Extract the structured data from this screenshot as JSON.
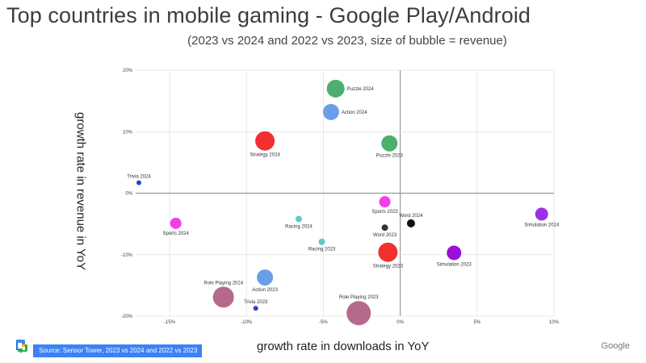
{
  "title": "Top countries in mobile gaming - Google Play/Android",
  "subtitle": "(2023 vs 2024 and 2022 vs 2023, size of bubble = revenue)",
  "source": "Source: Sensor Tower, 2023 vs 2024 and 2022 vs 2023",
  "brand": "Google",
  "logo_icon": "google-workspace-logo-icon",
  "chart_data": {
    "type": "scatter",
    "title": "Top countries in mobile gaming - Google Play/Android",
    "xlabel": "growth rate in downloads in YoY",
    "ylabel": "growth rate in revenue in YoY",
    "xlim": [
      -17,
      10
    ],
    "ylim": [
      -20,
      20
    ],
    "xticks": [
      -15,
      -10,
      -5,
      0,
      5,
      10
    ],
    "yticks": [
      -20,
      -10,
      0,
      10,
      20
    ],
    "tick_format": "percent",
    "grid": true,
    "points": [
      {
        "label": "Puzzle 2024",
        "x": -4.2,
        "y": 17.0,
        "size": 11,
        "color": "#4caf6e",
        "label_pos": "right"
      },
      {
        "label": "Action 2024",
        "x": -4.5,
        "y": 13.2,
        "size": 10,
        "color": "#6a9ee8",
        "label_pos": "right"
      },
      {
        "label": "Strategy 2024",
        "x": -8.8,
        "y": 8.5,
        "size": 12,
        "color": "#f23030",
        "label_pos": "below"
      },
      {
        "label": "Puzzle 2023",
        "x": -0.7,
        "y": 8.1,
        "size": 10,
        "color": "#4caf6e",
        "label_pos": "below"
      },
      {
        "label": "Trivia 2024",
        "x": -17.0,
        "y": 1.7,
        "size": 3,
        "color": "#2b3ed9",
        "label_pos": "above"
      },
      {
        "label": "Sports 2023",
        "x": -1.0,
        "y": -1.4,
        "size": 7,
        "color": "#f03ee8",
        "label_pos": "below"
      },
      {
        "label": "Word 2024",
        "x": 0.7,
        "y": -4.9,
        "size": 5,
        "color": "#111111",
        "label_pos": "above"
      },
      {
        "label": "Simulation 2024",
        "x": 9.2,
        "y": -3.4,
        "size": 8,
        "color": "#9b30e8",
        "label_pos": "below"
      },
      {
        "label": "Sports 2024",
        "x": -14.6,
        "y": -4.9,
        "size": 7,
        "color": "#f03ee8",
        "label_pos": "below"
      },
      {
        "label": "Racing 2024",
        "x": -6.6,
        "y": -4.2,
        "size": 4,
        "color": "#5cc8cc",
        "label_pos": "below"
      },
      {
        "label": "Word 2023",
        "x": -1.0,
        "y": -5.6,
        "size": 4,
        "color": "#333333",
        "label_pos": "below"
      },
      {
        "label": "Racing 2023",
        "x": -5.1,
        "y": -7.9,
        "size": 4,
        "color": "#5cc8cc",
        "label_pos": "below"
      },
      {
        "label": "Strategy 2023",
        "x": -0.8,
        "y": -9.6,
        "size": 12,
        "color": "#f23030",
        "label_pos": "below"
      },
      {
        "label": "Simulation 2023",
        "x": 3.5,
        "y": -9.7,
        "size": 9,
        "color": "#9b10d6",
        "label_pos": "below"
      },
      {
        "label": "Action 2023",
        "x": -8.8,
        "y": -13.7,
        "size": 10,
        "color": "#6a9ee8",
        "label_pos": "below"
      },
      {
        "label": "Role Playing 2024",
        "x": -11.5,
        "y": -16.9,
        "size": 13,
        "color": "#b56a8c",
        "label_pos": "above"
      },
      {
        "label": "Trivia 2023",
        "x": -9.4,
        "y": -18.7,
        "size": 3,
        "color": "#2b3ed9",
        "label_pos": "above"
      },
      {
        "label": "Role Playing 2023",
        "x": -2.7,
        "y": -19.5,
        "size": 15,
        "color": "#b56a8c",
        "label_pos": "above"
      }
    ]
  }
}
